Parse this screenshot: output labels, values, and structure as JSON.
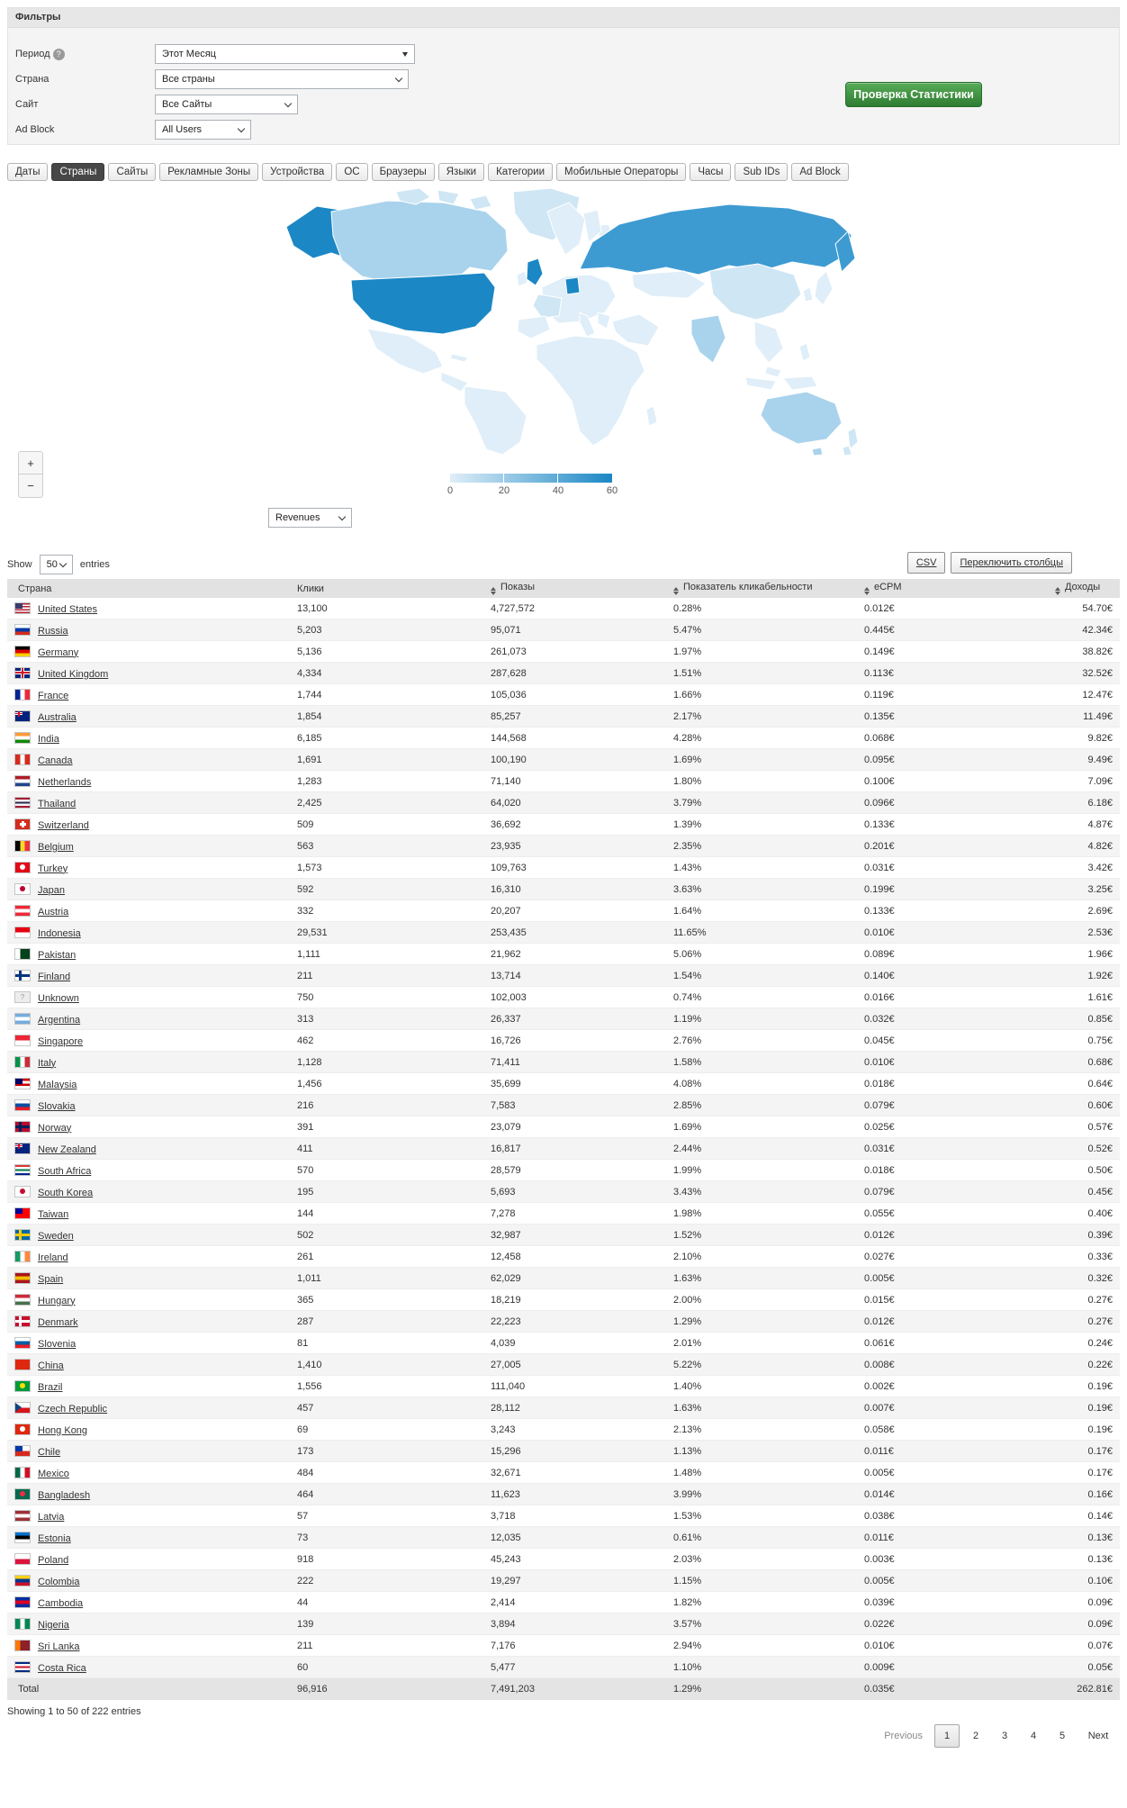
{
  "filters": {
    "title": "Фильтры",
    "period": {
      "label": "Период",
      "value": "Этот Месяц"
    },
    "country": {
      "label": "Страна",
      "value": "Все страны"
    },
    "site": {
      "label": "Сайт",
      "value": "Все Сайты"
    },
    "adblock": {
      "label": "Ad Block",
      "value": "All Users"
    },
    "help_icon": "?",
    "check_stats_button": "Проверка Статистики"
  },
  "tabs": [
    {
      "label": "Даты"
    },
    {
      "label": "Страны",
      "active": true
    },
    {
      "label": "Сайты"
    },
    {
      "label": "Рекламные Зоны"
    },
    {
      "label": "Устройства"
    },
    {
      "label": "ОС"
    },
    {
      "label": "Браузеры"
    },
    {
      "label": "Языки"
    },
    {
      "label": "Категории"
    },
    {
      "label": "Мобильные Операторы"
    },
    {
      "label": "Часы"
    },
    {
      "label": "Sub IDs"
    },
    {
      "label": "Ad Block"
    }
  ],
  "map": {
    "zoom_in_label": "+",
    "zoom_out_label": "−",
    "legend_ticks": [
      "0",
      "20",
      "40",
      "60"
    ],
    "metric_select": "Revenues",
    "colors": {
      "min": "#dfeef8",
      "low": "#cfe6f4",
      "mid": "#a9d3ec",
      "high": "#3d9bd2",
      "max": "#1b87c5"
    }
  },
  "table_controls": {
    "show_label": "Show",
    "entries_value": "50",
    "entries_label": "entries",
    "csv_button": "CSV",
    "toggle_columns_button": "Переключить столбцы"
  },
  "table": {
    "columns": [
      "Страна",
      "Клики",
      "Показы",
      "Показатель кликабельности",
      "eCPM",
      "Доходы"
    ],
    "rows": [
      {
        "country": "United States",
        "clicks": "13,100",
        "impressions": "4,727,572",
        "ctr": "0.28%",
        "ecpm": "0.012€",
        "revenue": "54.70€",
        "flag": {
          "t": "us"
        }
      },
      {
        "country": "Russia",
        "clicks": "5,203",
        "impressions": "95,071",
        "ctr": "5.47%",
        "ecpm": "0.445€",
        "revenue": "42.34€",
        "flag": {
          "t": "h",
          "c": [
            "#ffffff",
            "#0039a6",
            "#d52b1e"
          ]
        }
      },
      {
        "country": "Germany",
        "clicks": "5,136",
        "impressions": "261,073",
        "ctr": "1.97%",
        "ecpm": "0.149€",
        "revenue": "38.82€",
        "flag": {
          "t": "h",
          "c": [
            "#000000",
            "#dd0000",
            "#ffce00"
          ]
        }
      },
      {
        "country": "United Kingdom",
        "clicks": "4,334",
        "impressions": "287,628",
        "ctr": "1.51%",
        "ecpm": "0.113€",
        "revenue": "32.52€",
        "flag": {
          "t": "uk"
        }
      },
      {
        "country": "France",
        "clicks": "1,744",
        "impressions": "105,036",
        "ctr": "1.66%",
        "ecpm": "0.119€",
        "revenue": "12.47€",
        "flag": {
          "t": "v",
          "c": [
            "#002395",
            "#ffffff",
            "#ed2939"
          ]
        }
      },
      {
        "country": "Australia",
        "clicks": "1,854",
        "impressions": "85,257",
        "ctr": "2.17%",
        "ecpm": "0.135€",
        "revenue": "11.49€",
        "flag": {
          "t": "canton",
          "c": [
            "#00247d"
          ],
          "k": "uk"
        }
      },
      {
        "country": "India",
        "clicks": "6,185",
        "impressions": "144,568",
        "ctr": "4.28%",
        "ecpm": "0.068€",
        "revenue": "9.82€",
        "flag": {
          "t": "h",
          "c": [
            "#ff9933",
            "#ffffff",
            "#138808"
          ]
        }
      },
      {
        "country": "Canada",
        "clicks": "1,691",
        "impressions": "100,190",
        "ctr": "1.69%",
        "ecpm": "0.095€",
        "revenue": "9.49€",
        "flag": {
          "t": "v",
          "c": [
            "#d52b1e",
            "#ffffff",
            "#d52b1e"
          ]
        }
      },
      {
        "country": "Netherlands",
        "clicks": "1,283",
        "impressions": "71,140",
        "ctr": "1.80%",
        "ecpm": "0.100€",
        "revenue": "7.09€",
        "flag": {
          "t": "h",
          "c": [
            "#ae1c28",
            "#ffffff",
            "#21468b"
          ]
        }
      },
      {
        "country": "Thailand",
        "clicks": "2,425",
        "impressions": "64,020",
        "ctr": "3.79%",
        "ecpm": "0.096€",
        "revenue": "6.18€",
        "flag": {
          "t": "h",
          "c": [
            "#a51931",
            "#f4f5f8",
            "#2d2a4a",
            "#f4f5f8",
            "#a51931"
          ]
        }
      },
      {
        "country": "Switzerland",
        "clicks": "509",
        "impressions": "36,692",
        "ctr": "1.39%",
        "ecpm": "0.133€",
        "revenue": "4.87€",
        "flag": {
          "t": "plus",
          "c": [
            "#d52b1e",
            "#ffffff"
          ]
        }
      },
      {
        "country": "Belgium",
        "clicks": "563",
        "impressions": "23,935",
        "ctr": "2.35%",
        "ecpm": "0.201€",
        "revenue": "4.82€",
        "flag": {
          "t": "v",
          "c": [
            "#000000",
            "#fdda24",
            "#ef3340"
          ]
        }
      },
      {
        "country": "Turkey",
        "clicks": "1,573",
        "impressions": "109,763",
        "ctr": "1.43%",
        "ecpm": "0.031€",
        "revenue": "3.42€",
        "flag": {
          "t": "dot",
          "c": [
            "#e30a17",
            "#ffffff"
          ]
        }
      },
      {
        "country": "Japan",
        "clicks": "592",
        "impressions": "16,310",
        "ctr": "3.63%",
        "ecpm": "0.199€",
        "revenue": "3.25€",
        "flag": {
          "t": "dot",
          "c": [
            "#ffffff",
            "#bc002d"
          ]
        }
      },
      {
        "country": "Austria",
        "clicks": "332",
        "impressions": "20,207",
        "ctr": "1.64%",
        "ecpm": "0.133€",
        "revenue": "2.69€",
        "flag": {
          "t": "h",
          "c": [
            "#ed2939",
            "#ffffff",
            "#ed2939"
          ]
        }
      },
      {
        "country": "Indonesia",
        "clicks": "29,531",
        "impressions": "253,435",
        "ctr": "11.65%",
        "ecpm": "0.010€",
        "revenue": "2.53€",
        "flag": {
          "t": "h",
          "c": [
            "#e70011",
            "#ffffff"
          ]
        }
      },
      {
        "country": "Pakistan",
        "clicks": "1,111",
        "impressions": "21,962",
        "ctr": "5.06%",
        "ecpm": "0.089€",
        "revenue": "1.96€",
        "flag": {
          "t": "v",
          "c": [
            "#ffffff",
            "#01411c",
            "#01411c"
          ]
        }
      },
      {
        "country": "Finland",
        "clicks": "211",
        "impressions": "13,714",
        "ctr": "1.54%",
        "ecpm": "0.140€",
        "revenue": "1.92€",
        "flag": {
          "t": "cross",
          "c": [
            "#ffffff",
            "#003580"
          ]
        }
      },
      {
        "country": "Unknown",
        "clicks": "750",
        "impressions": "102,003",
        "ctr": "0.74%",
        "ecpm": "0.016€",
        "revenue": "1.61€",
        "flag": {
          "t": "solid",
          "c": [
            "#ededed"
          ],
          "q": true
        }
      },
      {
        "country": "Argentina",
        "clicks": "313",
        "impressions": "26,337",
        "ctr": "1.19%",
        "ecpm": "0.032€",
        "revenue": "0.85€",
        "flag": {
          "t": "h",
          "c": [
            "#74acdf",
            "#ffffff",
            "#74acdf"
          ]
        }
      },
      {
        "country": "Singapore",
        "clicks": "462",
        "impressions": "16,726",
        "ctr": "2.76%",
        "ecpm": "0.045€",
        "revenue": "0.75€",
        "flag": {
          "t": "h",
          "c": [
            "#ee2536",
            "#ffffff"
          ]
        }
      },
      {
        "country": "Italy",
        "clicks": "1,128",
        "impressions": "71,411",
        "ctr": "1.58%",
        "ecpm": "0.010€",
        "revenue": "0.68€",
        "flag": {
          "t": "v",
          "c": [
            "#009246",
            "#ffffff",
            "#ce2b37"
          ]
        }
      },
      {
        "country": "Malaysia",
        "clicks": "1,456",
        "impressions": "35,699",
        "ctr": "4.08%",
        "ecpm": "0.018€",
        "revenue": "0.64€",
        "flag": {
          "t": "canton",
          "c": [
            "#cc0001",
            "#ffffff",
            "#cc0001",
            "#ffffff"
          ],
          "k": "#010066"
        }
      },
      {
        "country": "Slovakia",
        "clicks": "216",
        "impressions": "7,583",
        "ctr": "2.85%",
        "ecpm": "0.079€",
        "revenue": "0.60€",
        "flag": {
          "t": "h",
          "c": [
            "#ffffff",
            "#0b4ea2",
            "#ee1c25"
          ]
        }
      },
      {
        "country": "Norway",
        "clicks": "391",
        "impressions": "23,079",
        "ctr": "1.69%",
        "ecpm": "0.025€",
        "revenue": "0.57€",
        "flag": {
          "t": "cross",
          "c": [
            "#ba0c2f",
            "#00205b"
          ]
        }
      },
      {
        "country": "New Zealand",
        "clicks": "411",
        "impressions": "16,817",
        "ctr": "2.44%",
        "ecpm": "0.031€",
        "revenue": "0.52€",
        "flag": {
          "t": "canton",
          "c": [
            "#00247d"
          ],
          "k": "uk"
        }
      },
      {
        "country": "South Africa",
        "clicks": "570",
        "impressions": "28,579",
        "ctr": "1.99%",
        "ecpm": "0.018€",
        "revenue": "0.50€",
        "flag": {
          "t": "h",
          "c": [
            "#de3831",
            "#ffffff",
            "#007a4d",
            "#ffffff",
            "#002395"
          ]
        }
      },
      {
        "country": "South Korea",
        "clicks": "195",
        "impressions": "5,693",
        "ctr": "3.43%",
        "ecpm": "0.079€",
        "revenue": "0.45€",
        "flag": {
          "t": "dot",
          "c": [
            "#ffffff",
            "#c60c30"
          ]
        }
      },
      {
        "country": "Taiwan",
        "clicks": "144",
        "impressions": "7,278",
        "ctr": "1.98%",
        "ecpm": "0.055€",
        "revenue": "0.40€",
        "flag": {
          "t": "canton",
          "c": [
            "#fe0000"
          ],
          "k": "#000095"
        }
      },
      {
        "country": "Sweden",
        "clicks": "502",
        "impressions": "32,987",
        "ctr": "1.52%",
        "ecpm": "0.012€",
        "revenue": "0.39€",
        "flag": {
          "t": "cross",
          "c": [
            "#006aa7",
            "#fecc00"
          ]
        }
      },
      {
        "country": "Ireland",
        "clicks": "261",
        "impressions": "12,458",
        "ctr": "2.10%",
        "ecpm": "0.027€",
        "revenue": "0.33€",
        "flag": {
          "t": "v",
          "c": [
            "#169b62",
            "#ffffff",
            "#ff883e"
          ]
        }
      },
      {
        "country": "Spain",
        "clicks": "1,011",
        "impressions": "62,029",
        "ctr": "1.63%",
        "ecpm": "0.005€",
        "revenue": "0.32€",
        "flag": {
          "t": "h",
          "c": [
            "#aa151b",
            "#f1bf00",
            "#aa151b"
          ]
        }
      },
      {
        "country": "Hungary",
        "clicks": "365",
        "impressions": "18,219",
        "ctr": "2.00%",
        "ecpm": "0.015€",
        "revenue": "0.27€",
        "flag": {
          "t": "h",
          "c": [
            "#ce2939",
            "#ffffff",
            "#477050"
          ]
        }
      },
      {
        "country": "Denmark",
        "clicks": "287",
        "impressions": "22,223",
        "ctr": "1.29%",
        "ecpm": "0.012€",
        "revenue": "0.27€",
        "flag": {
          "t": "cross",
          "c": [
            "#c8102e",
            "#ffffff"
          ]
        }
      },
      {
        "country": "Slovenia",
        "clicks": "81",
        "impressions": "4,039",
        "ctr": "2.01%",
        "ecpm": "0.061€",
        "revenue": "0.24€",
        "flag": {
          "t": "h",
          "c": [
            "#ffffff",
            "#005da4",
            "#ed1c24"
          ]
        }
      },
      {
        "country": "China",
        "clicks": "1,410",
        "impressions": "27,005",
        "ctr": "5.22%",
        "ecpm": "0.008€",
        "revenue": "0.22€",
        "flag": {
          "t": "solid",
          "c": [
            "#de2910"
          ]
        }
      },
      {
        "country": "Brazil",
        "clicks": "1,556",
        "impressions": "111,040",
        "ctr": "1.40%",
        "ecpm": "0.002€",
        "revenue": "0.19€",
        "flag": {
          "t": "dot",
          "c": [
            "#009b3a",
            "#ffdf00"
          ]
        }
      },
      {
        "country": "Czech Republic",
        "clicks": "457",
        "impressions": "28,112",
        "ctr": "1.63%",
        "ecpm": "0.007€",
        "revenue": "0.19€",
        "flag": {
          "t": "cz",
          "c": [
            "#ffffff",
            "#d7141a",
            "#11457e"
          ]
        }
      },
      {
        "country": "Hong Kong",
        "clicks": "69",
        "impressions": "3,243",
        "ctr": "2.13%",
        "ecpm": "0.058€",
        "revenue": "0.19€",
        "flag": {
          "t": "dot",
          "c": [
            "#de2910",
            "#ffffff"
          ]
        }
      },
      {
        "country": "Chile",
        "clicks": "173",
        "impressions": "15,296",
        "ctr": "1.13%",
        "ecpm": "0.011€",
        "revenue": "0.17€",
        "flag": {
          "t": "canton",
          "c": [
            "#ffffff",
            "#d52b1e"
          ],
          "k": "#0039a6"
        }
      },
      {
        "country": "Mexico",
        "clicks": "484",
        "impressions": "32,671",
        "ctr": "1.48%",
        "ecpm": "0.005€",
        "revenue": "0.17€",
        "flag": {
          "t": "v",
          "c": [
            "#006847",
            "#ffffff",
            "#ce1126"
          ]
        }
      },
      {
        "country": "Bangladesh",
        "clicks": "464",
        "impressions": "11,623",
        "ctr": "3.99%",
        "ecpm": "0.014€",
        "revenue": "0.16€",
        "flag": {
          "t": "dot",
          "c": [
            "#006a4e",
            "#f42a41"
          ]
        }
      },
      {
        "country": "Latvia",
        "clicks": "57",
        "impressions": "3,718",
        "ctr": "1.53%",
        "ecpm": "0.038€",
        "revenue": "0.14€",
        "flag": {
          "t": "h",
          "c": [
            "#9e3039",
            "#ffffff",
            "#9e3039"
          ]
        }
      },
      {
        "country": "Estonia",
        "clicks": "73",
        "impressions": "12,035",
        "ctr": "0.61%",
        "ecpm": "0.011€",
        "revenue": "0.13€",
        "flag": {
          "t": "h",
          "c": [
            "#0072ce",
            "#000000",
            "#ffffff"
          ]
        }
      },
      {
        "country": "Poland",
        "clicks": "918",
        "impressions": "45,243",
        "ctr": "2.03%",
        "ecpm": "0.003€",
        "revenue": "0.13€",
        "flag": {
          "t": "h",
          "c": [
            "#ffffff",
            "#dc143c"
          ]
        }
      },
      {
        "country": "Colombia",
        "clicks": "222",
        "impressions": "19,297",
        "ctr": "1.15%",
        "ecpm": "0.005€",
        "revenue": "0.10€",
        "flag": {
          "t": "h",
          "c": [
            "#fcd116",
            "#003893",
            "#ce1126"
          ]
        }
      },
      {
        "country": "Cambodia",
        "clicks": "44",
        "impressions": "2,414",
        "ctr": "1.82%",
        "ecpm": "0.039€",
        "revenue": "0.09€",
        "flag": {
          "t": "h",
          "c": [
            "#032ea1",
            "#e00025",
            "#032ea1"
          ]
        }
      },
      {
        "country": "Nigeria",
        "clicks": "139",
        "impressions": "3,894",
        "ctr": "3.57%",
        "ecpm": "0.022€",
        "revenue": "0.09€",
        "flag": {
          "t": "v",
          "c": [
            "#008751",
            "#ffffff",
            "#008751"
          ]
        }
      },
      {
        "country": "Sri Lanka",
        "clicks": "211",
        "impressions": "7,176",
        "ctr": "2.94%",
        "ecpm": "0.010€",
        "revenue": "0.07€",
        "flag": {
          "t": "v",
          "c": [
            "#ff7900",
            "#8d2029",
            "#8d2029"
          ]
        }
      },
      {
        "country": "Costa Rica",
        "clicks": "60",
        "impressions": "5,477",
        "ctr": "1.10%",
        "ecpm": "0.009€",
        "revenue": "0.05€",
        "flag": {
          "t": "h",
          "c": [
            "#002b7f",
            "#ffffff",
            "#ce1126",
            "#ffffff",
            "#002b7f"
          ]
        }
      }
    ],
    "total": {
      "label": "Total",
      "clicks": "96,916",
      "impressions": "7,491,203",
      "ctr": "1.29%",
      "ecpm": "0.035€",
      "revenue": "262.81€"
    }
  },
  "footer": {
    "showing": "Showing 1 to 50 of 222 entries",
    "previous_label": "Previous",
    "pages": [
      "1",
      "2",
      "3",
      "4",
      "5"
    ],
    "active_page": "1",
    "next_label": "Next"
  }
}
